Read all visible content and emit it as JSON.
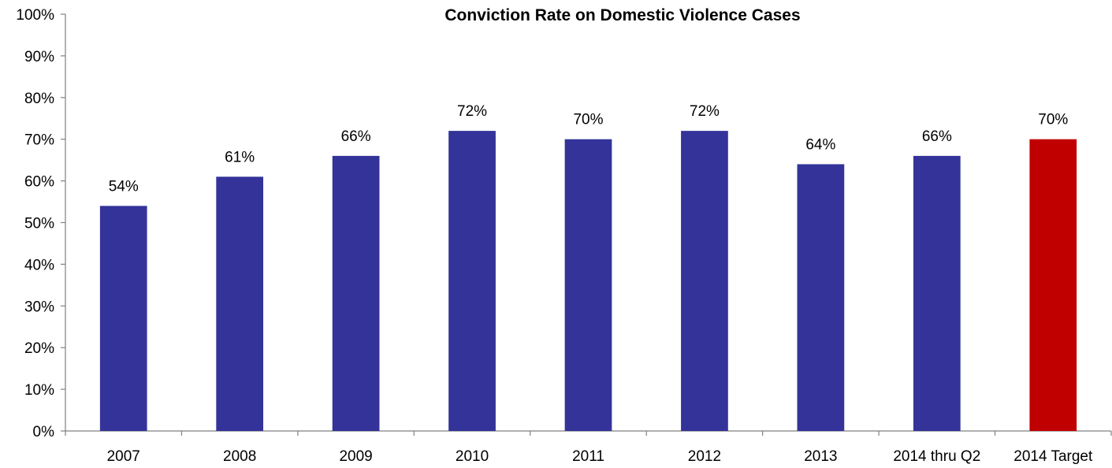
{
  "chart_data": {
    "type": "bar",
    "title": "Conviction Rate on Domestic Violence Cases",
    "categories": [
      "2007",
      "2008",
      "2009",
      "2010",
      "2011",
      "2012",
      "2013",
      "2014 thru Q2",
      "2014 Target"
    ],
    "values": [
      54,
      61,
      66,
      72,
      70,
      72,
      64,
      66,
      70
    ],
    "data_labels": [
      "54%",
      "61%",
      "66%",
      "72%",
      "70%",
      "72%",
      "64%",
      "66%",
      "70%"
    ],
    "bar_colors": [
      "#333399",
      "#333399",
      "#333399",
      "#333399",
      "#333399",
      "#333399",
      "#333399",
      "#333399",
      "#C00000"
    ],
    "ylim": [
      0,
      100
    ],
    "yticks": [
      "0%",
      "10%",
      "20%",
      "30%",
      "40%",
      "50%",
      "60%",
      "70%",
      "80%",
      "90%",
      "100%"
    ],
    "xlabel": "",
    "ylabel": "",
    "grid": false,
    "legend": "none"
  }
}
